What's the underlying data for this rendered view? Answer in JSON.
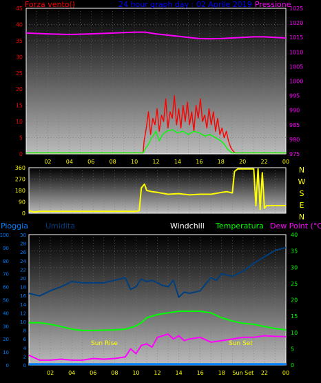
{
  "colors": {
    "wind": "#ff0000",
    "gust_avg": "#00ff00",
    "pressure": "#ff00ff",
    "direction": "#ffff00",
    "humidity": "#003f7f",
    "rain": "#0080ff",
    "temperature": "#00ff00",
    "dewpoint": "#ff00ff",
    "windchill": "#ffffff",
    "title": "#0000ff",
    "xticks": "#ffff00"
  },
  "chart_data": [
    {
      "type": "line",
      "title": "24 hour graph day : 02 Aprile 2019",
      "left_axis_label": "Forza vento()",
      "right_axis_label": "Pressione",
      "left_ticks": [
        "45",
        "40",
        "35",
        "30",
        "25",
        "20",
        "15",
        "10",
        "5",
        "0"
      ],
      "right_ticks": [
        "1025",
        "1020",
        "1015",
        "1010",
        "1005",
        "1000",
        "995",
        "990",
        "985",
        "980",
        "975"
      ],
      "x_ticks": [
        "02",
        "04",
        "06",
        "08",
        "10",
        "12",
        "14",
        "16",
        "18",
        "20",
        "22",
        "00"
      ],
      "ylim_left": [
        0,
        45
      ],
      "ylim_right": [
        975,
        1025
      ],
      "xlim": [
        0,
        24
      ],
      "series": [
        {
          "key": "pressure",
          "axis": "right",
          "x": [
            0,
            2,
            4,
            6,
            8,
            10,
            11,
            12,
            13,
            14,
            15,
            16,
            17,
            18,
            19,
            20,
            21,
            22,
            23,
            24
          ],
          "values": [
            1016.5,
            1016.2,
            1016,
            1016.2,
            1016.5,
            1016.8,
            1016.8,
            1016.2,
            1015.8,
            1015.4,
            1015,
            1014.6,
            1014.5,
            1014.6,
            1014.8,
            1015,
            1015.2,
            1015.2,
            1015,
            1014.8
          ]
        },
        {
          "key": "wind",
          "axis": "left",
          "x": [
            0,
            10.8,
            10.9,
            11.1,
            11.3,
            11.5,
            11.7,
            11.9,
            12.1,
            12.3,
            12.5,
            12.7,
            12.9,
            13.1,
            13.3,
            13.5,
            13.7,
            13.9,
            14.1,
            14.3,
            14.5,
            14.7,
            14.9,
            15.1,
            15.3,
            15.5,
            15.7,
            15.9,
            16.1,
            16.3,
            16.5,
            16.7,
            16.9,
            17.1,
            17.3,
            17.5,
            17.7,
            17.9,
            18.1,
            18.3,
            18.5,
            18.7,
            18.9,
            19.1,
            19.3,
            24
          ],
          "values": [
            0.3,
            0.3,
            4,
            8,
            13,
            6,
            11,
            9,
            14,
            7,
            12,
            10,
            17,
            8,
            13,
            11,
            18,
            9,
            14,
            8,
            15,
            10,
            16,
            9,
            13,
            7,
            15,
            11,
            17,
            10,
            12,
            8,
            14,
            9,
            13,
            7,
            11,
            6,
            8,
            5,
            7,
            4,
            2,
            1,
            0.3,
            0.3
          ]
        },
        {
          "key": "gust_avg",
          "axis": "left",
          "x": [
            0,
            10.8,
            11,
            11.3,
            11.6,
            12,
            12.3,
            12.6,
            13,
            13.5,
            14,
            14.5,
            15,
            15.5,
            16,
            16.5,
            17,
            17.5,
            18,
            18.3,
            18.6,
            19,
            24
          ],
          "values": [
            0.3,
            0.3,
            1.5,
            3,
            5,
            7,
            4,
            6,
            7,
            7.5,
            6.5,
            7,
            6,
            7,
            6.5,
            5.5,
            6,
            5,
            4,
            3,
            1.5,
            0.3,
            0.3
          ]
        }
      ]
    },
    {
      "type": "line",
      "left_ticks": [
        "360",
        "270",
        "180",
        "90",
        "0"
      ],
      "right_labels": [
        "N",
        "W",
        "S",
        "E",
        "N"
      ],
      "ylim": [
        0,
        360
      ],
      "xlim": [
        0,
        24
      ],
      "series": [
        {
          "key": "direction",
          "x": [
            0,
            0.5,
            1,
            2,
            4,
            6,
            8,
            10,
            10.3,
            10.5,
            10.8,
            11,
            11.5,
            12,
            13,
            14,
            15,
            16,
            17,
            18,
            18.5,
            19,
            19.2,
            19.5,
            20,
            20.5,
            21,
            21.2,
            21.4,
            21.6,
            21.8,
            22,
            22.2,
            22.4,
            22.8,
            23,
            24
          ],
          "values": [
            20,
            10,
            15,
            15,
            15,
            15,
            15,
            15,
            20,
            200,
            230,
            180,
            170,
            165,
            150,
            155,
            145,
            150,
            150,
            165,
            170,
            160,
            330,
            350,
            350,
            350,
            350,
            60,
            350,
            30,
            320,
            40,
            60,
            60,
            60,
            60,
            60
          ]
        }
      ]
    },
    {
      "type": "line",
      "labels": [
        "Pioggia",
        "Umidita",
        "Windchill",
        "Temperatura",
        "Dew Point (°C)"
      ],
      "left_ticks": [
        "100",
        "90",
        "80",
        "70",
        "60",
        "50",
        "40",
        "30",
        "20",
        "10",
        "0"
      ],
      "left_ticks2": [
        "30",
        "28",
        "26",
        "24",
        "22",
        "20",
        "18",
        "16",
        "14",
        "12",
        "10",
        "8",
        "6",
        "4",
        "2",
        "0"
      ],
      "right_ticks": [
        "40",
        "35",
        "30",
        "25",
        "20",
        "15",
        "10",
        "5",
        "0"
      ],
      "x_ticks": [
        "02",
        "04",
        "06",
        "08",
        "10",
        "12",
        "14",
        "16",
        "18",
        "Sun Set",
        "22",
        "00"
      ],
      "annotations": [
        "Sun Rise",
        "Sun Set"
      ],
      "ylim_temp": [
        0,
        40
      ],
      "xlim": [
        0,
        24
      ],
      "series": [
        {
          "key": "humidity",
          "axis": "pct",
          "x": [
            0,
            1,
            2,
            3,
            4,
            5,
            6,
            7,
            8,
            9,
            9.5,
            10,
            10.5,
            11,
            11.5,
            12,
            12.5,
            13,
            13.5,
            14,
            14.5,
            15,
            16,
            16.5,
            17,
            17.5,
            18,
            19,
            20,
            21,
            22,
            23,
            24
          ],
          "values": [
            55,
            53,
            57,
            60,
            64,
            63,
            63,
            63,
            65,
            67,
            58,
            60,
            66,
            64,
            65,
            63,
            61,
            60,
            65,
            52,
            56,
            55,
            57,
            62,
            67,
            65,
            70,
            68,
            72,
            78,
            83,
            88,
            90
          ]
        },
        {
          "key": "temperature",
          "axis": "temp",
          "x": [
            0,
            1,
            2,
            3,
            4,
            5,
            6,
            7,
            8,
            9,
            10,
            10.5,
            11,
            12,
            13,
            14,
            15,
            16,
            17,
            18,
            19,
            20,
            21,
            22,
            23,
            24
          ],
          "values": [
            13,
            13,
            12.5,
            11.8,
            11,
            10.6,
            10.6,
            10.7,
            10.8,
            11,
            12,
            13,
            14.5,
            15.5,
            16,
            16.5,
            16.5,
            16.5,
            16,
            14.5,
            13.5,
            12.8,
            12.5,
            11.8,
            11.2,
            10.8
          ]
        },
        {
          "key": "dewpoint",
          "axis": "temp",
          "x": [
            0,
            1,
            2,
            3,
            4,
            5,
            6,
            7,
            8,
            9,
            9.5,
            10,
            10.5,
            11,
            11.5,
            12,
            12.5,
            13,
            13.5,
            14,
            14.5,
            15,
            16,
            17,
            18,
            19,
            20,
            21,
            22,
            23,
            24
          ],
          "values": [
            3,
            1.5,
            1.5,
            1.8,
            1.5,
            1.5,
            2,
            1.8,
            2,
            2.5,
            5,
            3.5,
            6,
            6.5,
            5.5,
            8.5,
            9,
            9.5,
            8,
            9,
            7.5,
            8,
            8.5,
            7,
            7.5,
            8,
            8.5,
            8.5,
            9,
            8.8,
            8.7
          ]
        },
        {
          "key": "rain",
          "axis": "rain",
          "x": [
            0,
            24
          ],
          "values": [
            0.2,
            0.2
          ]
        }
      ]
    }
  ]
}
